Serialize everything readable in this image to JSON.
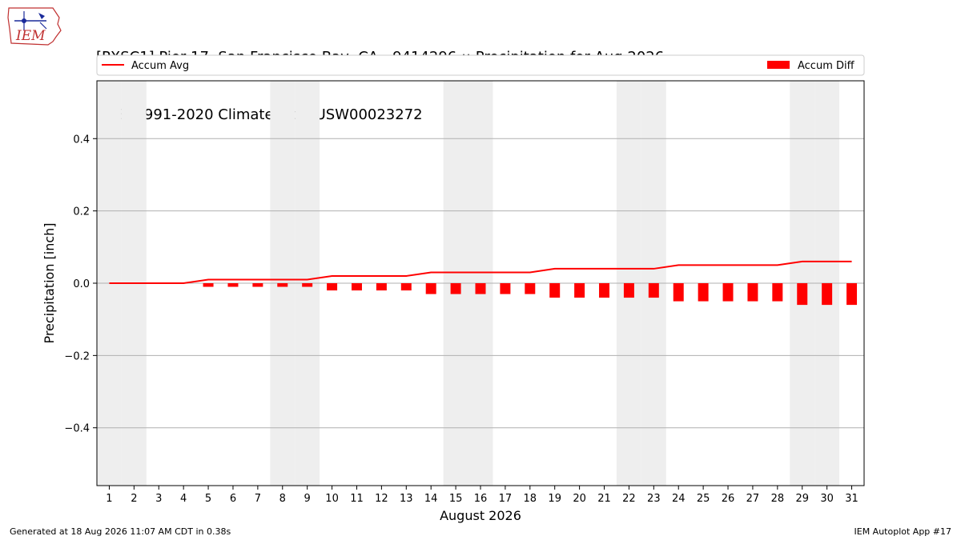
{
  "header": {
    "title_line1": "[PXSC1] Pier 17  San Francisco Bay  CA - 9414296 :: Precipitation for Aug 2026",
    "title_line2": "NCEI 1991-2020 Climate Site: USW00023272"
  },
  "logo": {
    "text": "IEM",
    "icon": "iem-iowa-logo-icon"
  },
  "footer": {
    "left": "Generated at 18 Aug 2026 11:07 AM CDT in 0.38s",
    "right": "IEM Autoplot App #17"
  },
  "colors": {
    "accent": "#ff0000",
    "weekend_band": "#eeeeee",
    "grid": "#b0b0b0"
  },
  "chart_data": {
    "type": "bar",
    "title": "[PXSC1] Pier 17  San Francisco Bay  CA - 9414296 :: Precipitation for Aug 2026",
    "xlabel": "August 2026",
    "ylabel": "Precipitation [inch]",
    "ylim": [
      -0.56,
      0.56
    ],
    "yticks": [
      -0.4,
      -0.2,
      0.0,
      0.2,
      0.4
    ],
    "ytick_labels": [
      "−0.4",
      "−0.2",
      "0.0",
      "0.2",
      "0.4"
    ],
    "x": [
      1,
      2,
      3,
      4,
      5,
      6,
      7,
      8,
      9,
      10,
      11,
      12,
      13,
      14,
      15,
      16,
      17,
      18,
      19,
      20,
      21,
      22,
      23,
      24,
      25,
      26,
      27,
      28,
      29,
      30,
      31
    ],
    "weekend_days": [
      1,
      2,
      8,
      9,
      15,
      16,
      22,
      23,
      29,
      30
    ],
    "grid": true,
    "legend": [
      "top-left",
      "top-right"
    ],
    "series": [
      {
        "name": "Accum Avg",
        "type": "line",
        "color": "#ff0000",
        "values": [
          0,
          0,
          0,
          0,
          0.01,
          0.01,
          0.01,
          0.01,
          0.01,
          0.02,
          0.02,
          0.02,
          0.02,
          0.03,
          0.03,
          0.03,
          0.03,
          0.03,
          0.04,
          0.04,
          0.04,
          0.04,
          0.04,
          0.05,
          0.05,
          0.05,
          0.05,
          0.05,
          0.06,
          0.06,
          0.06
        ]
      },
      {
        "name": "Accum Diff",
        "type": "bar",
        "color": "#ff0000",
        "values": [
          0,
          0,
          0,
          0,
          -0.01,
          -0.01,
          -0.01,
          -0.01,
          -0.01,
          -0.02,
          -0.02,
          -0.02,
          -0.02,
          -0.03,
          -0.03,
          -0.03,
          -0.03,
          -0.03,
          -0.04,
          -0.04,
          -0.04,
          -0.04,
          -0.04,
          -0.05,
          -0.05,
          -0.05,
          -0.05,
          -0.05,
          -0.06,
          -0.06,
          -0.06
        ]
      }
    ]
  }
}
